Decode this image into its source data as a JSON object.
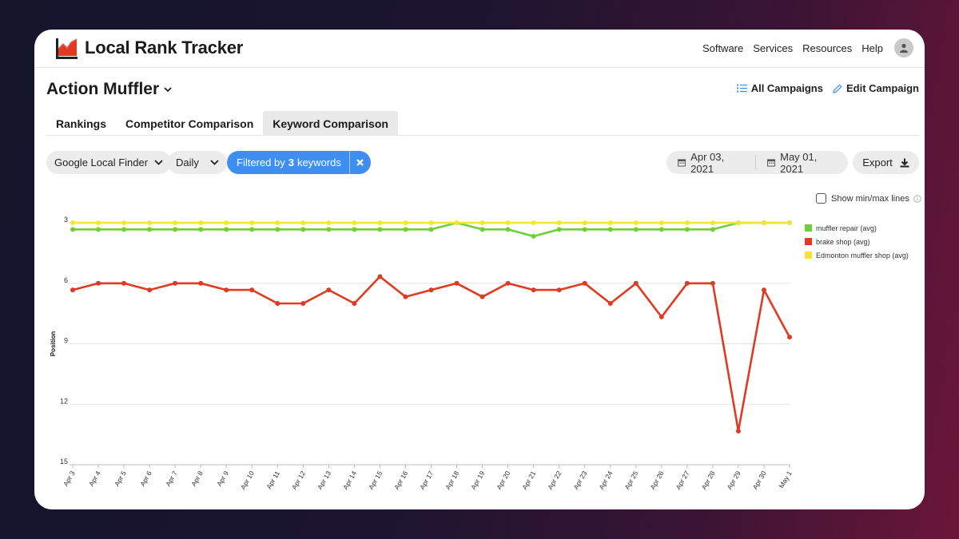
{
  "header": {
    "app_name": "Local Rank Tracker",
    "nav": [
      "Software",
      "Services",
      "Resources",
      "Help"
    ]
  },
  "campaign": {
    "title": "Action Muffler",
    "all_campaigns": "All Campaigns",
    "edit_campaign": "Edit Campaign"
  },
  "tabs": [
    {
      "label": "Rankings",
      "active": false
    },
    {
      "label": "Competitor Comparison",
      "active": false
    },
    {
      "label": "Keyword Comparison",
      "active": true
    }
  ],
  "filters": {
    "source": "Google Local Finder",
    "frequency": "Daily",
    "filter_prefix": "Filtered by",
    "filter_count": "3",
    "filter_suffix": "keywords",
    "date_from": "Apr 03, 2021",
    "date_to": "May 01, 2021",
    "export_label": "Export"
  },
  "minmax_label": "Show min/max lines",
  "colors": {
    "accent": "#3f8ef2",
    "green": "#6fcf3b",
    "red": "#e03a22",
    "yellow": "#f5e33a"
  },
  "chart_data": {
    "type": "line",
    "ylabel": "Position",
    "xlabel": "",
    "ylim": [
      15,
      3
    ],
    "yticks": [
      3,
      6,
      9,
      12,
      15
    ],
    "y_inverted": true,
    "grid": true,
    "legend_position": "top-right",
    "categories": [
      "Apr 3",
      "Apr 4",
      "Apr 5",
      "Apr 6",
      "Apr 7",
      "Apr 8",
      "Apr 9",
      "Apr 10",
      "Apr 11",
      "Apr 12",
      "Apr 13",
      "Apr 14",
      "Apr 15",
      "Apr 16",
      "Apr 17",
      "Apr 18",
      "Apr 19",
      "Apr 20",
      "Apr 21",
      "Apr 22",
      "Apr 23",
      "Apr 24",
      "Apr 25",
      "Apr 26",
      "Apr 27",
      "Apr 28",
      "Apr 29",
      "Apr 30",
      "May 1"
    ],
    "series": [
      {
        "name": "muffler repair (avg)",
        "color": "#6fcf3b",
        "values": [
          3.33,
          3.33,
          3.33,
          3.33,
          3.33,
          3.33,
          3.33,
          3.33,
          3.33,
          3.33,
          3.33,
          3.33,
          3.33,
          3.33,
          3.33,
          3.0,
          3.33,
          3.33,
          3.67,
          3.33,
          3.33,
          3.33,
          3.33,
          3.33,
          3.33,
          3.33,
          3.0,
          3.0,
          3.0
        ]
      },
      {
        "name": "brake shop (avg)",
        "color": "#e03a22",
        "values": [
          6.33,
          6.0,
          6.0,
          6.33,
          6.0,
          6.0,
          6.33,
          6.33,
          7.0,
          7.0,
          6.33,
          7.0,
          5.67,
          6.67,
          6.33,
          6.0,
          6.67,
          6.0,
          6.33,
          6.33,
          6.0,
          7.0,
          6.0,
          7.67,
          6.0,
          6.0,
          13.33,
          6.33,
          8.67
        ]
      },
      {
        "name": "Edmonton muffler shop (avg)",
        "color": "#f5e33a",
        "values": [
          3.0,
          3.0,
          3.0,
          3.0,
          3.0,
          3.0,
          3.0,
          3.0,
          3.0,
          3.0,
          3.0,
          3.0,
          3.0,
          3.0,
          3.0,
          3.0,
          3.0,
          3.0,
          3.0,
          3.0,
          3.0,
          3.0,
          3.0,
          3.0,
          3.0,
          3.0,
          3.0,
          3.0,
          3.0
        ]
      }
    ]
  }
}
